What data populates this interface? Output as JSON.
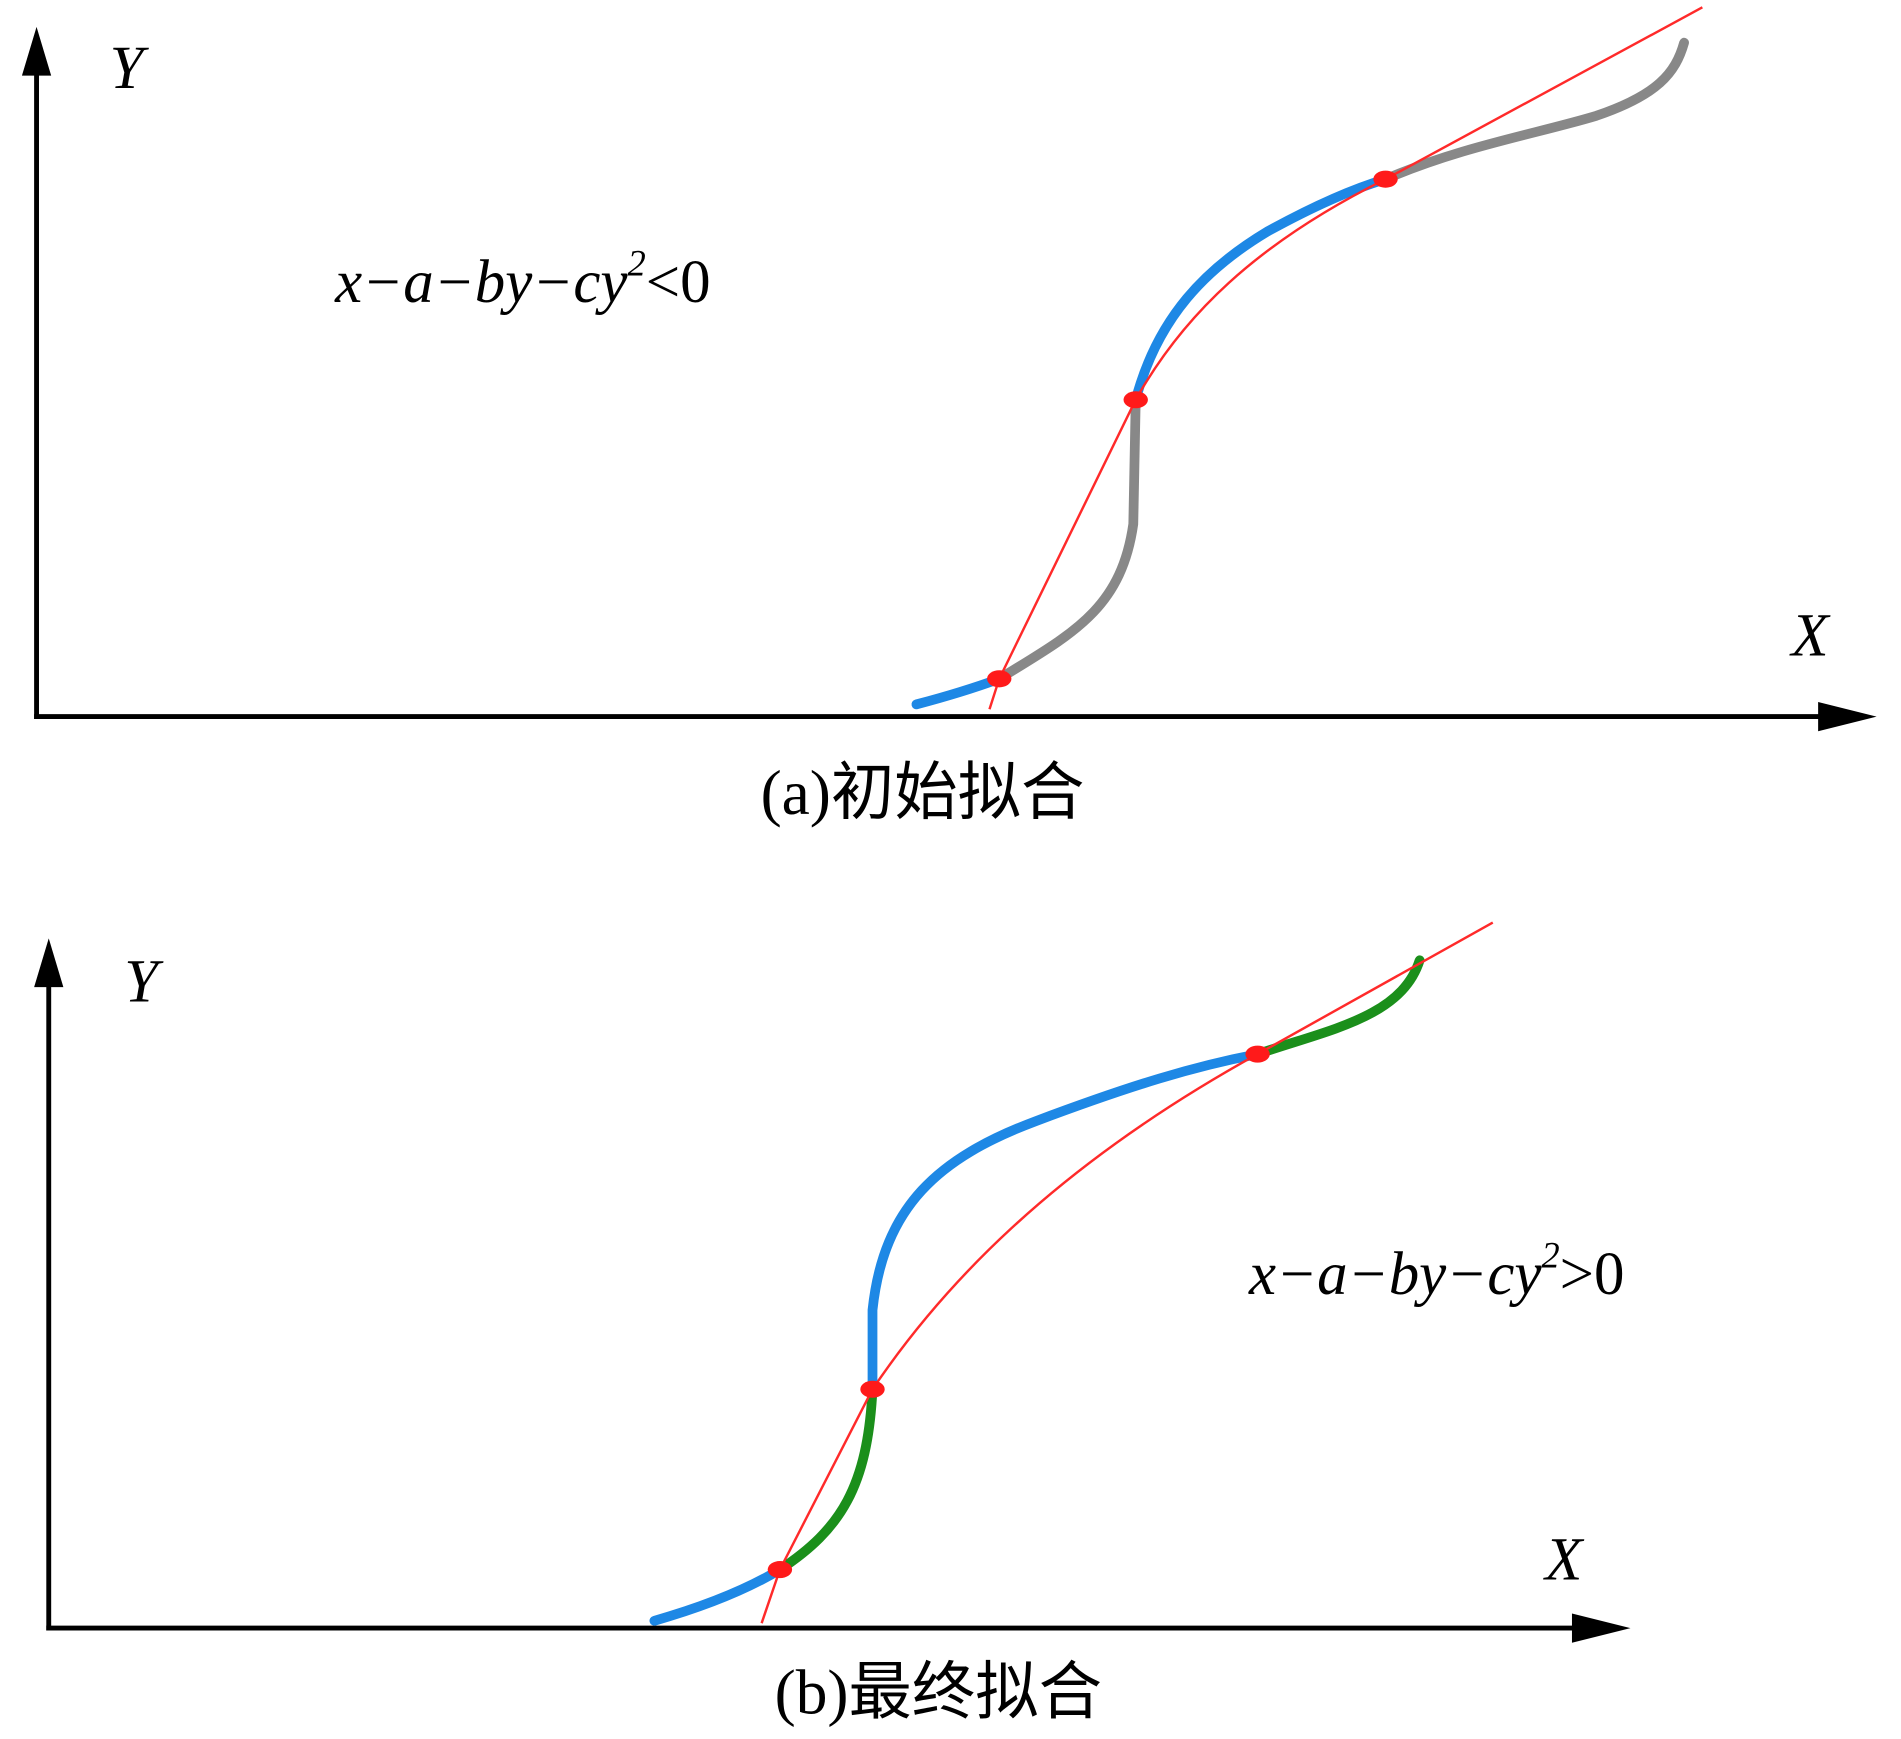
{
  "panels": [
    {
      "y_axis_label": "Y",
      "x_axis_label": "X",
      "inequality": {
        "expression": "x−a−by−cy",
        "exponent": "2",
        "relation": "<0"
      },
      "caption": "(a)初始拟合"
    },
    {
      "y_axis_label": "Y",
      "x_axis_label": "X",
      "inequality": {
        "expression": "x−a−by−cy",
        "exponent": "2",
        "relation": ">0"
      },
      "caption": "(b)最终拟合"
    }
  ]
}
